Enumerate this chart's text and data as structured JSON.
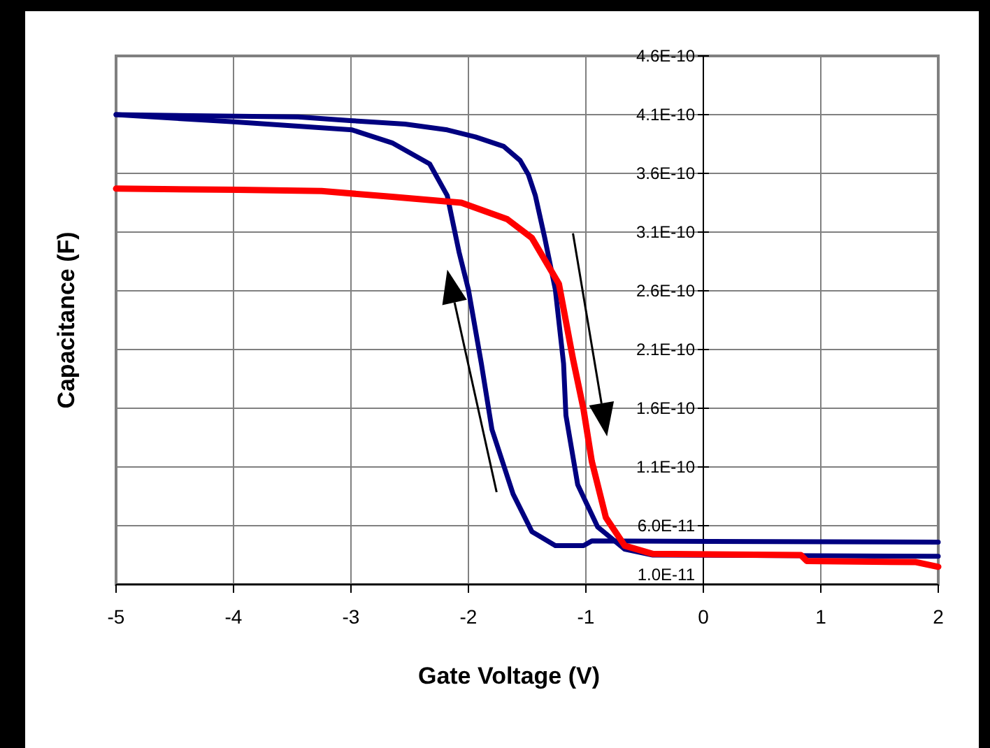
{
  "chart_data": {
    "type": "line",
    "xlabel": "Gate Voltage (V)",
    "ylabel": "Capacitance (F)",
    "xlim": [
      -5,
      2
    ],
    "xticks": [
      -5,
      -4,
      -3,
      -2,
      -1,
      0,
      1,
      2
    ],
    "ylim": [
      1e-11,
      4.6e-10
    ],
    "yticks": [
      {
        "value": 1e-11,
        "label": "1.0E-11"
      },
      {
        "value": 6e-11,
        "label": "6.0E-11"
      },
      {
        "value": 1.1e-10,
        "label": "1.1E-10"
      },
      {
        "value": 1.6e-10,
        "label": "1.6E-10"
      },
      {
        "value": 2.1e-10,
        "label": "2.1E-10"
      },
      {
        "value": 2.6e-10,
        "label": "2.6E-10"
      },
      {
        "value": 3.1e-10,
        "label": "3.1E-10"
      },
      {
        "value": 3.6e-10,
        "label": "3.6E-10"
      },
      {
        "value": 4.1e-10,
        "label": "4.1E-10"
      },
      {
        "value": 4.6e-10,
        "label": "4.6E-10"
      }
    ],
    "grid": true,
    "marker": "none",
    "line_style": "solid",
    "series": [
      {
        "color": "#000080",
        "x": [
          -5,
          -3.45,
          -3.01,
          -2.54,
          -2.18,
          -1.94,
          -1.7,
          -1.56,
          -1.49,
          -1.43,
          -1.35,
          -1.26,
          -1.19,
          -1.17,
          -1.07,
          -0.9,
          -0.67,
          -0.43,
          2
        ],
        "values": [
          4.1e-10,
          4.08e-10,
          4.05e-10,
          4.02e-10,
          3.97e-10,
          3.91e-10,
          3.83e-10,
          3.71e-10,
          3.59e-10,
          3.41e-10,
          3.05e-10,
          2.61e-10,
          1.98e-10,
          1.54e-10,
          9.5e-11,
          5.9e-11,
          4e-11,
          3.5e-11,
          3.4e-11
        ]
      },
      {
        "color": "#000080",
        "x": [
          -5,
          -4.02,
          -2.99,
          -2.65,
          -2.33,
          -2.18,
          -2.08,
          -2.0,
          -1.89,
          -1.8,
          -1.62,
          -1.46,
          -1.26,
          -1.02,
          -0.95,
          2
        ],
        "values": [
          4.1e-10,
          4.04e-10,
          3.97e-10,
          3.86e-10,
          3.68e-10,
          3.41e-10,
          2.93e-10,
          2.61e-10,
          1.98e-10,
          1.42e-10,
          8.7e-11,
          5.5e-11,
          4.3e-11,
          4.3e-11,
          4.7e-11,
          4.6e-11
        ]
      },
      {
        "color": "#ff0000",
        "x": [
          -5,
          -3.96,
          -3.25,
          -2.65,
          -2.06,
          -1.67,
          -1.46,
          -1.23,
          -1.11,
          -1.02,
          -0.95,
          -0.83,
          -0.67,
          -0.43,
          0.83,
          0.88,
          1.81,
          2
        ],
        "values": [
          3.47e-10,
          3.46e-10,
          3.45e-10,
          3.4e-10,
          3.35e-10,
          3.21e-10,
          3.05e-10,
          2.66e-10,
          2.02e-10,
          1.59e-10,
          1.15e-10,
          6.7e-11,
          4.3e-11,
          3.6e-11,
          3.5e-11,
          3e-11,
          2.9e-11,
          2.5e-11
        ]
      }
    ]
  }
}
